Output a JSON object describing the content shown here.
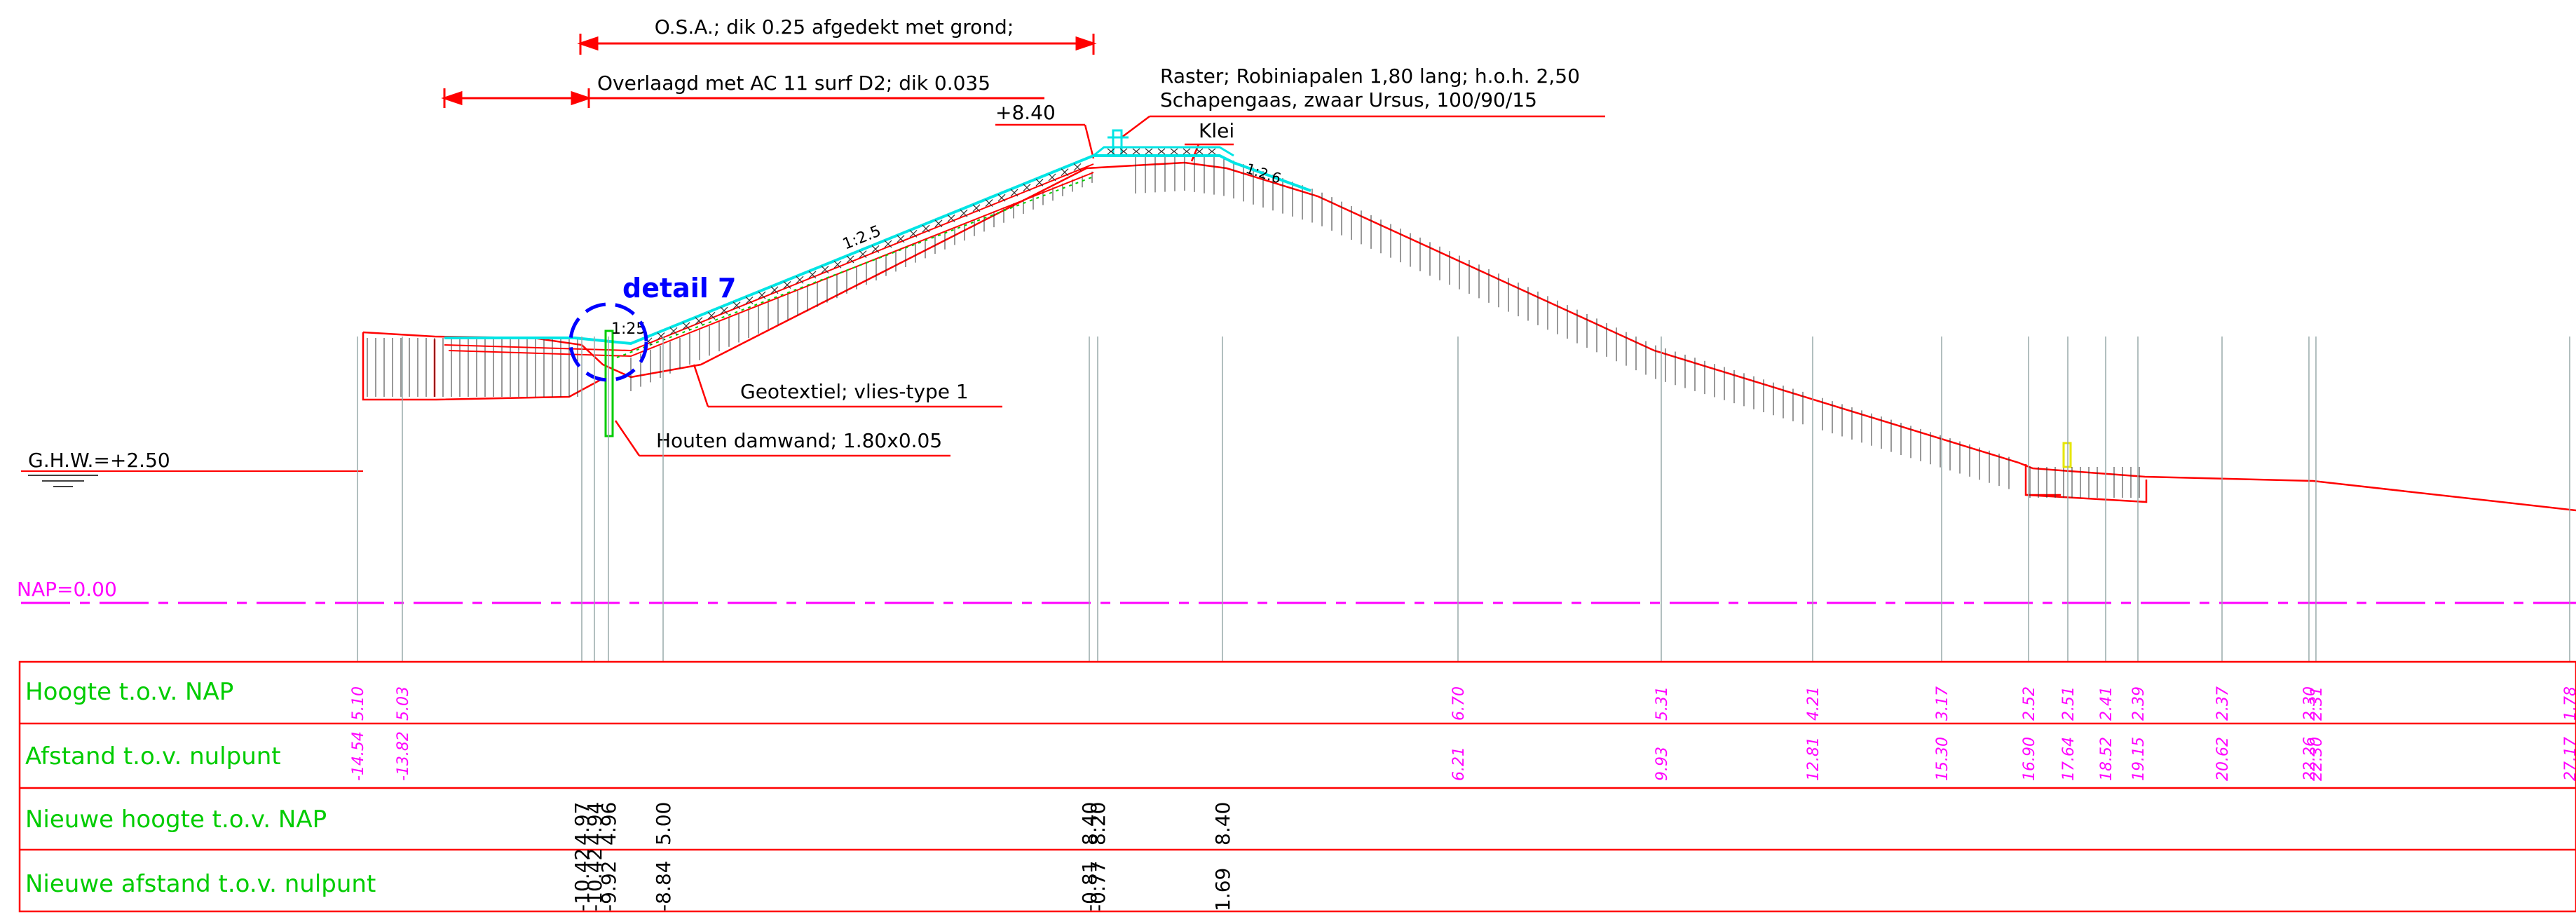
{
  "annotations": {
    "osa": "O.S.A.; dik 0.25 afgedekt met grond;",
    "overlaagd": "Overlaagd met AC 11 surf D2; dik 0.035",
    "raster_line1": "Raster; Robiniapalen 1,80 lang; h.o.h. 2,50",
    "raster_line2": "Schapengaas, zwaar Ursus, 100/90/15",
    "top_level": "+8.40",
    "klei": "Klei",
    "slope_26": "1:2.6",
    "slope_25": "1:2.5",
    "slope_125": "1:25",
    "detail": "detail 7",
    "geotextiel": "Geotextiel; vlies-type 1",
    "damwand": "Houten damwand; 1.80x0.05",
    "ghw": "G.H.W.=+2.50",
    "nap": "NAP=0.00"
  },
  "table": {
    "row_labels": [
      "Hoogte t.o.v. NAP",
      "Afstand t.o.v. nulpunt",
      "Nieuwe hoogte t.o.v. NAP",
      "Nieuwe afstand t.o.v. nulpunt"
    ],
    "existing_points": [
      {
        "height": "5.10",
        "distance": "-14.54"
      },
      {
        "height": "5.03",
        "distance": "-13.82"
      },
      {
        "height": "6.70",
        "distance": "6.21"
      },
      {
        "height": "5.31",
        "distance": "9.93"
      },
      {
        "height": "4.21",
        "distance": "12.81"
      },
      {
        "height": "3.17",
        "distance": "15.30"
      },
      {
        "height": "2.52",
        "distance": "16.90"
      },
      {
        "height": "2.51",
        "distance": "17.64"
      },
      {
        "height": "2.41",
        "distance": "18.52"
      },
      {
        "height": "2.39",
        "distance": "19.15"
      },
      {
        "height": "2.37",
        "distance": "20.62"
      },
      {
        "height": "2.30",
        "distance": "22.26"
      },
      {
        "height": "2.31",
        "distance": "22.30"
      },
      {
        "height": "1.78",
        "distance": "27.17"
      }
    ],
    "new_points": [
      {
        "height": "4.97",
        "distance": "-10.42"
      },
      {
        "height": "4.94",
        "distance": "-10.42"
      },
      {
        "height": "4.96",
        "distance": "-9.92"
      },
      {
        "height": "5.00",
        "distance": "-8.84"
      },
      {
        "height": "8.40",
        "distance": "-0.81"
      },
      {
        "height": "8.20",
        "distance": "-0.77"
      },
      {
        "height": "8.40",
        "distance": "1.69"
      }
    ]
  },
  "colors": {
    "red": "#ff0000",
    "cyan": "#00e5e5",
    "blue": "#0000ff",
    "magenta": "#ff00ff",
    "green": "#00cc00",
    "grey": "#555555",
    "yellow": "#e6e600"
  }
}
